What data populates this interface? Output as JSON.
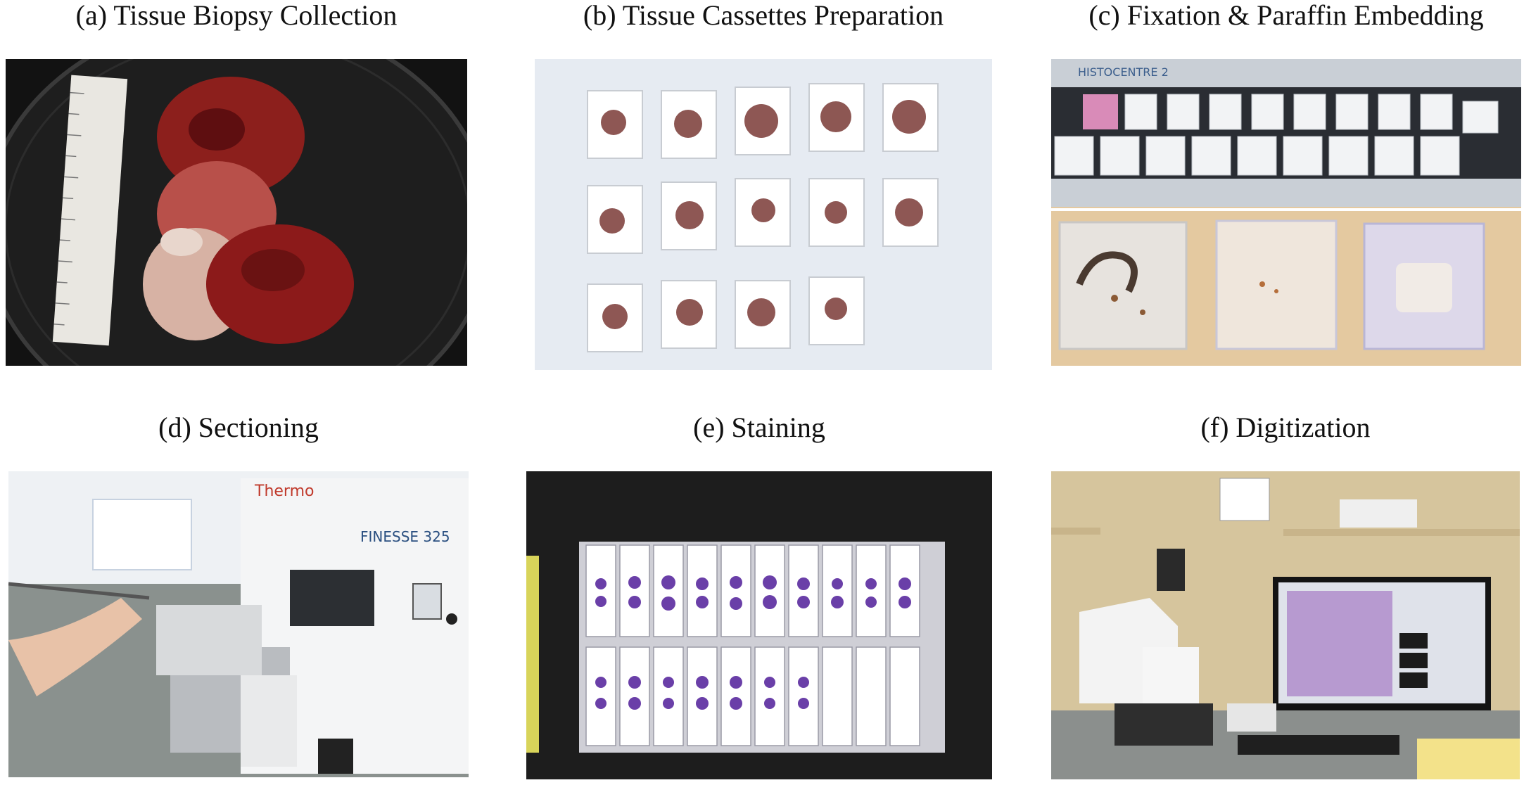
{
  "panels": [
    {
      "id": "a",
      "caption": "(a) Tissue Biopsy Collection"
    },
    {
      "id": "b",
      "caption": "(b) Tissue Cassettes Preparation"
    },
    {
      "id": "c",
      "caption": "(c) Fixation & Paraffin Embedding",
      "device_label": "HISTOCENTRE 2"
    },
    {
      "id": "d",
      "caption": "(d) Sectioning",
      "brand_label": "Thermo",
      "device_label": "FINESSE 325"
    },
    {
      "id": "e",
      "caption": "(e) Staining"
    },
    {
      "id": "f",
      "caption": "(f) Digitization"
    }
  ],
  "colors": {
    "tissue": "#8c1f1c",
    "stain": "#6a3fa8",
    "background": "#ffffff"
  }
}
